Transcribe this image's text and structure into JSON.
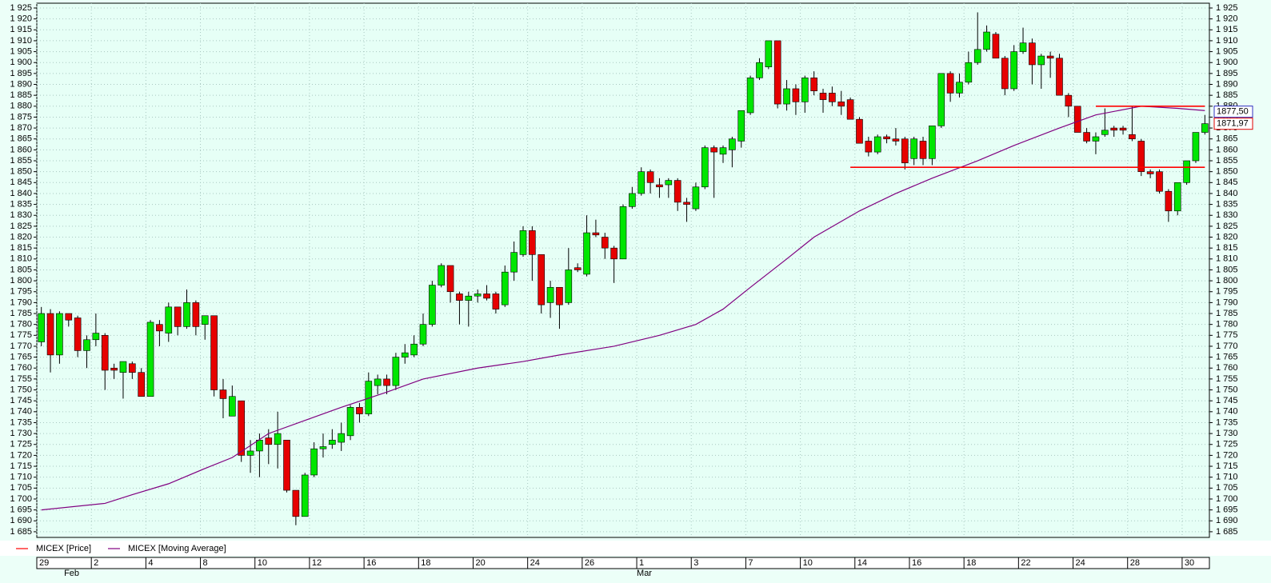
{
  "chart_data": {
    "type": "candlestick",
    "ylim": [
      1682.4,
      1927.2
    ],
    "yticks": [
      {
        "value": 1685,
        "label": "1 685"
      },
      {
        "value": 1690,
        "label": "1 690"
      },
      {
        "value": 1695,
        "label": "1 695"
      },
      {
        "value": 1700,
        "label": "1 700"
      },
      {
        "value": 1705,
        "label": "1 705"
      },
      {
        "value": 1710,
        "label": "1 710"
      },
      {
        "value": 1715,
        "label": "1 715"
      },
      {
        "value": 1720,
        "label": "1 720"
      },
      {
        "value": 1725,
        "label": "1 725"
      },
      {
        "value": 1730,
        "label": "1 730"
      },
      {
        "value": 1735,
        "label": "1 735"
      },
      {
        "value": 1740,
        "label": "1 740"
      },
      {
        "value": 1745,
        "label": "1 745"
      },
      {
        "value": 1750,
        "label": "1 750"
      },
      {
        "value": 1755,
        "label": "1 755"
      },
      {
        "value": 1760,
        "label": "1 760"
      },
      {
        "value": 1765,
        "label": "1 765"
      },
      {
        "value": 1770,
        "label": "1 770"
      },
      {
        "value": 1775,
        "label": "1 775"
      },
      {
        "value": 1780,
        "label": "1 780"
      },
      {
        "value": 1785,
        "label": "1 785"
      },
      {
        "value": 1790,
        "label": "1 790"
      },
      {
        "value": 1795,
        "label": "1 795"
      },
      {
        "value": 1800,
        "label": "1 800"
      },
      {
        "value": 1805,
        "label": "1 805"
      },
      {
        "value": 1810,
        "label": "1 810"
      },
      {
        "value": 1815,
        "label": "1 815"
      },
      {
        "value": 1820,
        "label": "1 820"
      },
      {
        "value": 1825,
        "label": "1 825"
      },
      {
        "value": 1830,
        "label": "1 830"
      },
      {
        "value": 1835,
        "label": "1 835"
      },
      {
        "value": 1840,
        "label": "1 840"
      },
      {
        "value": 1845,
        "label": "1 845"
      },
      {
        "value": 1850,
        "label": "1 850"
      },
      {
        "value": 1855,
        "label": "1 855"
      },
      {
        "value": 1860,
        "label": "1 860"
      },
      {
        "value": 1865,
        "label": "1 865"
      },
      {
        "value": 1870,
        "label": "1 870"
      },
      {
        "value": 1875,
        "label": "1 875"
      },
      {
        "value": 1880,
        "label": "1 880"
      },
      {
        "value": 1885,
        "label": "1 885"
      },
      {
        "value": 1890,
        "label": "1 890"
      },
      {
        "value": 1895,
        "label": "1 895"
      },
      {
        "value": 1900,
        "label": "1 900"
      },
      {
        "value": 1905,
        "label": "1 905"
      },
      {
        "value": 1910,
        "label": "1 910"
      },
      {
        "value": 1915,
        "label": "1 915"
      },
      {
        "value": 1920,
        "label": "1 920"
      },
      {
        "value": 1925,
        "label": "1 925"
      }
    ],
    "grid": true,
    "categories": [
      "29",
      null,
      null,
      null,
      null,
      null,
      "2",
      null,
      null,
      null,
      null,
      null,
      "4",
      null,
      null,
      null,
      null,
      null,
      "8",
      null,
      null,
      null,
      null,
      null,
      "10",
      null,
      null,
      null,
      null,
      null,
      "12",
      null,
      null,
      null,
      null,
      null,
      "16",
      null,
      null,
      null,
      null,
      null,
      "18",
      null,
      null,
      null,
      null,
      null,
      "20",
      null,
      null,
      null,
      null,
      null,
      "24",
      null,
      null,
      null,
      null,
      null,
      "26",
      null,
      null,
      null,
      null,
      null,
      "1",
      null,
      null,
      null,
      null,
      null,
      "3",
      null,
      null,
      null,
      null,
      null,
      "7",
      null,
      null,
      null,
      null,
      null,
      "10",
      null,
      null,
      null,
      null,
      null,
      "14",
      null,
      null,
      null,
      null,
      null,
      "16",
      null,
      null,
      null,
      null,
      null,
      "18",
      null,
      null,
      null,
      null,
      null,
      "22",
      null,
      null,
      null,
      null,
      null,
      "24",
      null,
      null,
      null,
      null,
      null,
      "28",
      null,
      null,
      null,
      null,
      null,
      "30",
      null,
      null
    ],
    "months": [
      {
        "label": "Feb",
        "x": 3
      },
      {
        "label": "Mar",
        "x": 66
      }
    ],
    "series": [
      {
        "name": "MICEX [Price]",
        "type": "candlestick",
        "color": "#ff0000",
        "up_color": "#00e600",
        "down_color": "#e60000",
        "open": [
          1772,
          1785,
          1766,
          1785,
          1783,
          1768,
          1773,
          1775,
          1760,
          1758,
          1762,
          1758,
          1747,
          1780,
          1776,
          1788,
          1779,
          1790,
          1780,
          1784,
          1750,
          1738,
          1745,
          1720,
          1722,
          1728,
          1725,
          1727,
          1704,
          1692,
          1711,
          1723,
          1725,
          1726,
          1729,
          1742,
          1739,
          1752,
          1755,
          1752,
          1765,
          1766,
          1771,
          1780,
          1798,
          1807,
          1794,
          1791,
          1793,
          1794,
          1794,
          1789,
          1804,
          1812,
          1823,
          1812,
          1790,
          1797,
          1790,
          1806,
          1803,
          1822,
          1820,
          1815,
          1810,
          1834,
          1840,
          1850,
          1844,
          1844,
          1846,
          1836,
          1833,
          1843,
          1861,
          1858,
          1860,
          1864,
          1877,
          1893,
          1898,
          1910,
          1881,
          1888,
          1882,
          1893,
          1886,
          1886,
          1882,
          1883,
          1874,
          1864,
          1859,
          1866,
          1865,
          1865,
          1856,
          1864,
          1856,
          1871,
          1895,
          1886,
          1891,
          1900,
          1906,
          1913,
          1902,
          1888,
          1905,
          1909,
          1899,
          1903,
          1902,
          1885,
          1880,
          1868,
          1864,
          1867,
          1870,
          1870,
          1867,
          1864,
          1850,
          1850,
          1841,
          1832,
          1845,
          1855,
          1868
        ],
        "high": [
          1788,
          1787,
          1786,
          1785,
          1784,
          1775,
          1785,
          1776,
          1762,
          1763,
          1763,
          1760,
          1782,
          1782,
          1790,
          1788,
          1796,
          1791,
          1784,
          1784,
          1755,
          1752,
          1745,
          1727,
          1730,
          1732,
          1740,
          1727,
          1704,
          1712,
          1726,
          1730,
          1732,
          1735,
          1743,
          1744,
          1758,
          1757,
          1757,
          1767,
          1771,
          1775,
          1785,
          1800,
          1808,
          1807,
          1795,
          1795,
          1796,
          1798,
          1795,
          1807,
          1818,
          1825,
          1825,
          1812,
          1800,
          1797,
          1815,
          1808,
          1830,
          1828,
          1822,
          1816,
          1835,
          1843,
          1852,
          1851,
          1847,
          1847,
          1847,
          1838,
          1845,
          1862,
          1862,
          1862,
          1866,
          1878,
          1894,
          1902,
          1910,
          1910,
          1892,
          1890,
          1894,
          1896,
          1888,
          1889,
          1887,
          1884,
          1875,
          1866,
          1867,
          1867,
          1870,
          1866,
          1866,
          1866,
          1871,
          1895,
          1896,
          1895,
          1905,
          1923,
          1917,
          1914,
          1903,
          1908,
          1916,
          1911,
          1904,
          1905,
          1904,
          1886,
          1880,
          1870,
          1868,
          1879,
          1871,
          1871,
          1880,
          1865,
          1851,
          1851,
          1842,
          1845,
          1855,
          1868,
          1876
        ],
        "low": [
          1770,
          1758,
          1762,
          1779,
          1765,
          1760,
          1770,
          1750,
          1755,
          1746,
          1755,
          1747,
          1747,
          1770,
          1772,
          1775,
          1778,
          1775,
          1773,
          1747,
          1737,
          1738,
          1717,
          1712,
          1710,
          1716,
          1714,
          1703,
          1688,
          1692,
          1710,
          1719,
          1723,
          1722,
          1727,
          1735,
          1738,
          1748,
          1748,
          1750,
          1762,
          1765,
          1770,
          1779,
          1797,
          1790,
          1780,
          1779,
          1790,
          1791,
          1785,
          1788,
          1800,
          1811,
          1800,
          1785,
          1783,
          1778,
          1789,
          1804,
          1802,
          1820,
          1810,
          1799,
          1810,
          1833,
          1839,
          1840,
          1838,
          1838,
          1832,
          1827,
          1832,
          1842,
          1838,
          1854,
          1852,
          1861,
          1876,
          1892,
          1897,
          1879,
          1878,
          1876,
          1877,
          1885,
          1877,
          1880,
          1876,
          1874,
          1863,
          1857,
          1858,
          1863,
          1862,
          1851,
          1853,
          1853,
          1853,
          1870,
          1882,
          1884,
          1890,
          1899,
          1905,
          1902,
          1885,
          1887,
          1904,
          1890,
          1888,
          1893,
          1885,
          1875,
          1868,
          1863,
          1858,
          1866,
          1866,
          1867,
          1864,
          1848,
          1847,
          1840,
          1827,
          1830,
          1844,
          1854,
          1867
        ],
        "close": [
          1785,
          1766,
          1785,
          1782,
          1768,
          1773,
          1776,
          1759,
          1759,
          1763,
          1758,
          1747,
          1781,
          1777,
          1788,
          1779,
          1790,
          1779,
          1784,
          1750,
          1746,
          1747,
          1720,
          1722,
          1727,
          1725,
          1730,
          1704,
          1692,
          1711,
          1723,
          1724,
          1727,
          1730,
          1742,
          1739,
          1754,
          1755,
          1752,
          1765,
          1767,
          1771,
          1780,
          1798,
          1807,
          1795,
          1791,
          1793,
          1794,
          1792,
          1787,
          1804,
          1813,
          1823,
          1812,
          1789,
          1797,
          1789,
          1805,
          1805,
          1822,
          1821,
          1815,
          1810,
          1834,
          1840,
          1850,
          1845,
          1843,
          1846,
          1836,
          1835,
          1843,
          1861,
          1859,
          1861,
          1865,
          1878,
          1893,
          1900,
          1910,
          1881,
          1888,
          1882,
          1893,
          1887,
          1883,
          1882,
          1880,
          1874,
          1863,
          1859,
          1866,
          1865,
          1864,
          1854,
          1865,
          1856,
          1871,
          1895,
          1886,
          1891,
          1900,
          1906,
          1914,
          1902,
          1888,
          1905,
          1909,
          1899,
          1903,
          1902,
          1885,
          1880,
          1868,
          1864,
          1866,
          1869,
          1869,
          1869,
          1865,
          1850,
          1849,
          1841,
          1832,
          1845,
          1855,
          1868,
          1872
        ]
      },
      {
        "name": "MICEX [Moving Average]",
        "type": "line",
        "color": "#800080",
        "x": [
          0,
          7,
          10,
          14,
          18,
          21,
          25,
          29,
          33,
          38,
          42,
          48,
          53,
          57,
          63,
          68,
          72,
          75,
          78,
          82,
          85,
          90,
          94,
          98,
          103,
          107,
          112,
          116,
          121,
          125,
          128
        ],
        "values": [
          1695,
          1698,
          1702,
          1707,
          1714,
          1719,
          1730,
          1736,
          1742,
          1749,
          1755,
          1760,
          1763,
          1766,
          1770,
          1775,
          1780,
          1787,
          1797,
          1810,
          1820,
          1832,
          1840,
          1847,
          1855,
          1862,
          1870,
          1876,
          1880,
          1879,
          1878
        ]
      }
    ],
    "levels": [
      {
        "value": 1880,
        "x": [
          116,
          128
        ],
        "color": "#ff0000"
      },
      {
        "value": 1852,
        "x": [
          89,
          128
        ],
        "color": "#ff0000"
      }
    ],
    "price_markers": [
      {
        "value": 1877.5,
        "label": "1877,50",
        "color": "#3030c0"
      },
      {
        "value": 1871.97,
        "label": "1871,97",
        "color": "#e00000"
      }
    ]
  }
}
